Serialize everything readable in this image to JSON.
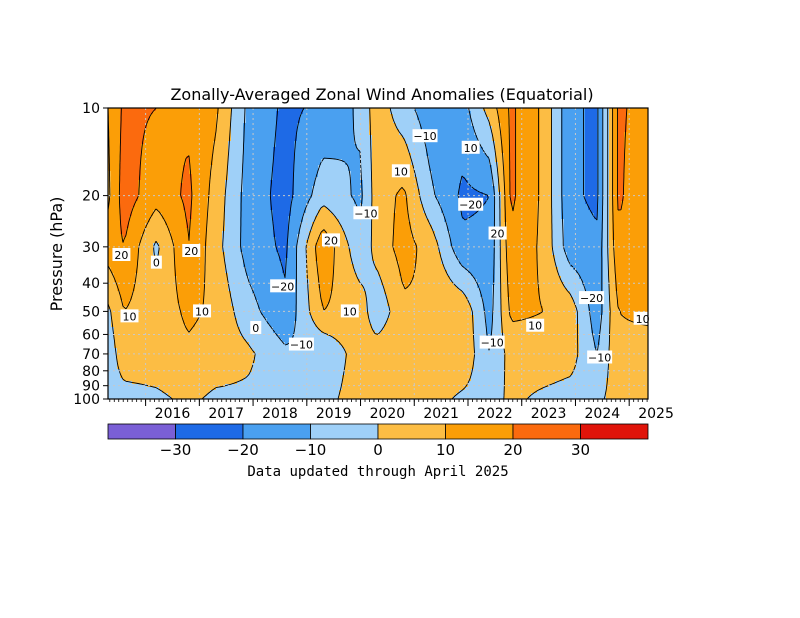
{
  "chart_data": {
    "type": "heatmap",
    "title": "Zonally-Averaged Zonal Wind Anomalies (Equatorial)",
    "ylabel": "Pressure (hPa)",
    "xlabel": "",
    "y_scale": "log",
    "y_inverted": true,
    "ylim": [
      100,
      10
    ],
    "xlim": [
      2015.3,
      2025.35
    ],
    "y_ticks": [
      10,
      20,
      30,
      40,
      50,
      60,
      70,
      80,
      90,
      100
    ],
    "x_ticks": [
      2016,
      2017,
      2018,
      2019,
      2020,
      2021,
      2022,
      2023,
      2024,
      2025
    ],
    "grid": true,
    "colorbar": {
      "bounds": [
        -30,
        -20,
        -10,
        0,
        10,
        20,
        30
      ],
      "tick_labels": [
        "−30",
        "−20",
        "−10",
        "0",
        "10",
        "20",
        "30"
      ],
      "colors": [
        "#7a5fd6",
        "#1e6ae6",
        "#4aa0f0",
        "#9fd0f8",
        "#fcbd44",
        "#fb9e07",
        "#fb6a0e",
        "#e0140a"
      ]
    },
    "phases": [
      {
        "pressure_hPa": 10,
        "x": [
          2015.3,
          2015.6,
          2016.2,
          2016.8,
          2017.3,
          2017.9,
          2018.6,
          2019.3,
          2020.0,
          2020.3,
          2020.8,
          2021.3,
          2021.9,
          2022.4,
          2022.8,
          2023.4,
          2023.9,
          2024.4,
          2024.8,
          2025.35
        ],
        "u": [
          10,
          22,
          20,
          18,
          12,
          -12,
          -22,
          -18,
          -8,
          6,
          -6,
          -16,
          -14,
          4,
          22,
          8,
          -18,
          -22,
          22,
          15
        ]
      },
      {
        "pressure_hPa": 20,
        "x": [
          2015.3,
          2015.6,
          2016.2,
          2016.8,
          2017.3,
          2017.9,
          2018.6,
          2019.3,
          2020.0,
          2020.3,
          2020.8,
          2021.3,
          2021.9,
          2022.4,
          2022.8,
          2023.4,
          2023.9,
          2024.4,
          2024.8,
          2025.35
        ],
        "u": [
          8,
          25,
          14,
          22,
          6,
          -14,
          -24,
          -4,
          -12,
          5,
          12,
          -8,
          -22,
          -20,
          22,
          8,
          -18,
          -22,
          22,
          10
        ]
      },
      {
        "pressure_hPa": 30,
        "x": [
          2015.3,
          2015.6,
          2016.2,
          2016.8,
          2017.3,
          2017.9,
          2018.6,
          2019.3,
          2020.0,
          2020.3,
          2020.8,
          2021.3,
          2021.9,
          2022.4,
          2022.8,
          2023.4,
          2023.9,
          2024.4,
          2024.8,
          2025.35
        ],
        "u": [
          15,
          20,
          -2,
          20,
          4,
          -14,
          -22,
          18,
          -8,
          4,
          14,
          6,
          -18,
          -18,
          18,
          8,
          -16,
          -18,
          18,
          12
        ]
      },
      {
        "pressure_hPa": 50,
        "x": [
          2015.3,
          2015.6,
          2016.2,
          2016.8,
          2017.3,
          2017.9,
          2018.6,
          2019.3,
          2020.0,
          2020.3,
          2020.8,
          2021.3,
          2021.9,
          2022.4,
          2022.8,
          2023.4,
          2023.9,
          2024.4,
          2024.8,
          2025.35
        ],
        "u": [
          -2,
          10,
          4,
          12,
          8,
          -6,
          -18,
          10,
          6,
          -8,
          8,
          10,
          8,
          -14,
          12,
          10,
          6,
          -16,
          10,
          12
        ]
      },
      {
        "pressure_hPa": 70,
        "x": [
          2015.3,
          2015.6,
          2016.2,
          2016.8,
          2017.3,
          2017.9,
          2018.6,
          2019.3,
          2020.0,
          2020.3,
          2020.8,
          2021.3,
          2021.9,
          2022.4,
          2022.8,
          2023.4,
          2023.9,
          2024.4,
          2024.8,
          2025.35
        ],
        "u": [
          -6,
          6,
          6,
          8,
          6,
          2,
          -8,
          -10,
          6,
          6,
          8,
          8,
          8,
          -10,
          4,
          6,
          4,
          -10,
          8,
          6
        ]
      },
      {
        "pressure_hPa": 100,
        "x": [
          2015.3,
          2015.6,
          2016.2,
          2016.8,
          2017.3,
          2017.9,
          2018.6,
          2019.3,
          2020.0,
          2020.3,
          2020.8,
          2021.3,
          2021.9,
          2022.4,
          2022.8,
          2023.4,
          2023.9,
          2024.4,
          2024.8,
          2025.35
        ],
        "u": [
          -4,
          -4,
          -2,
          2,
          -2,
          -2,
          -2,
          -4,
          6,
          6,
          4,
          4,
          -2,
          -4,
          2,
          -2,
          -4,
          -2,
          4,
          2
        ]
      }
    ],
    "contour_labels": [
      {
        "text": "20",
        "x": 2015.55,
        "p": 32
      },
      {
        "text": "0",
        "x": 2016.2,
        "p": 34
      },
      {
        "text": "20",
        "x": 2016.85,
        "p": 31
      },
      {
        "text": "10",
        "x": 2015.7,
        "p": 52
      },
      {
        "text": "10",
        "x": 2017.05,
        "p": 50
      },
      {
        "text": "0",
        "x": 2018.05,
        "p": 57
      },
      {
        "text": "−20",
        "x": 2018.55,
        "p": 41
      },
      {
        "text": "20",
        "x": 2019.45,
        "p": 28.5
      },
      {
        "text": "−10",
        "x": 2018.9,
        "p": 65
      },
      {
        "text": "10",
        "x": 2019.8,
        "p": 50
      },
      {
        "text": "−10",
        "x": 2020.1,
        "p": 23
      },
      {
        "text": "10",
        "x": 2020.75,
        "p": 16.5
      },
      {
        "text": "−10",
        "x": 2021.2,
        "p": 12.5
      },
      {
        "text": "10",
        "x": 2022.05,
        "p": 13.7
      },
      {
        "text": "−20",
        "x": 2022.05,
        "p": 21.5
      },
      {
        "text": "20",
        "x": 2022.55,
        "p": 27
      },
      {
        "text": "−10",
        "x": 2022.45,
        "p": 64
      },
      {
        "text": "10",
        "x": 2023.25,
        "p": 56
      },
      {
        "text": "−20",
        "x": 2024.3,
        "p": 45
      },
      {
        "text": "−10",
        "x": 2024.45,
        "p": 72
      },
      {
        "text": "10",
        "x": 2025.25,
        "p": 53
      }
    ],
    "footer": "Data updated through April 2025"
  }
}
